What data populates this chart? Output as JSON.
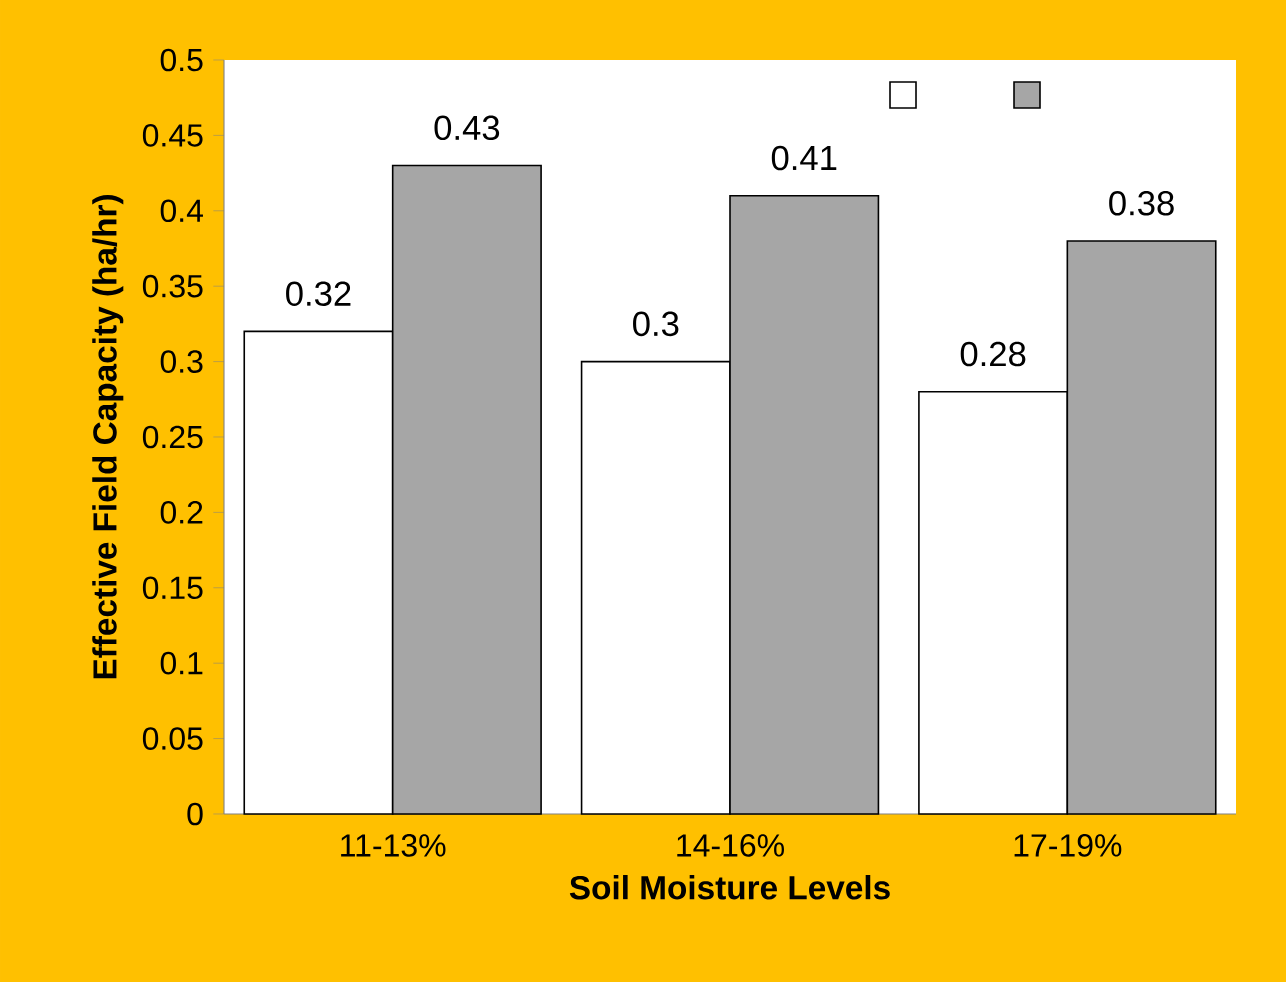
{
  "chart_data": {
    "type": "bar",
    "xlabel": "Soil Moisture Levels",
    "ylabel": "Effective Field Capacity (ha/hr)",
    "categories": [
      "11-13%",
      "14-16%",
      "17-19%"
    ],
    "series": [
      {
        "color": "#ffffff",
        "values": [
          0.32,
          0.3,
          0.28
        ]
      },
      {
        "color": "#a6a6a6",
        "values": [
          0.43,
          0.41,
          0.38
        ]
      }
    ],
    "ylim": [
      0,
      0.5
    ],
    "yticks": [
      0,
      0.05,
      0.1,
      0.15,
      0.2,
      0.25,
      0.3,
      0.35,
      0.4,
      0.45,
      0.5
    ],
    "data_labels": true,
    "grid": false
  }
}
